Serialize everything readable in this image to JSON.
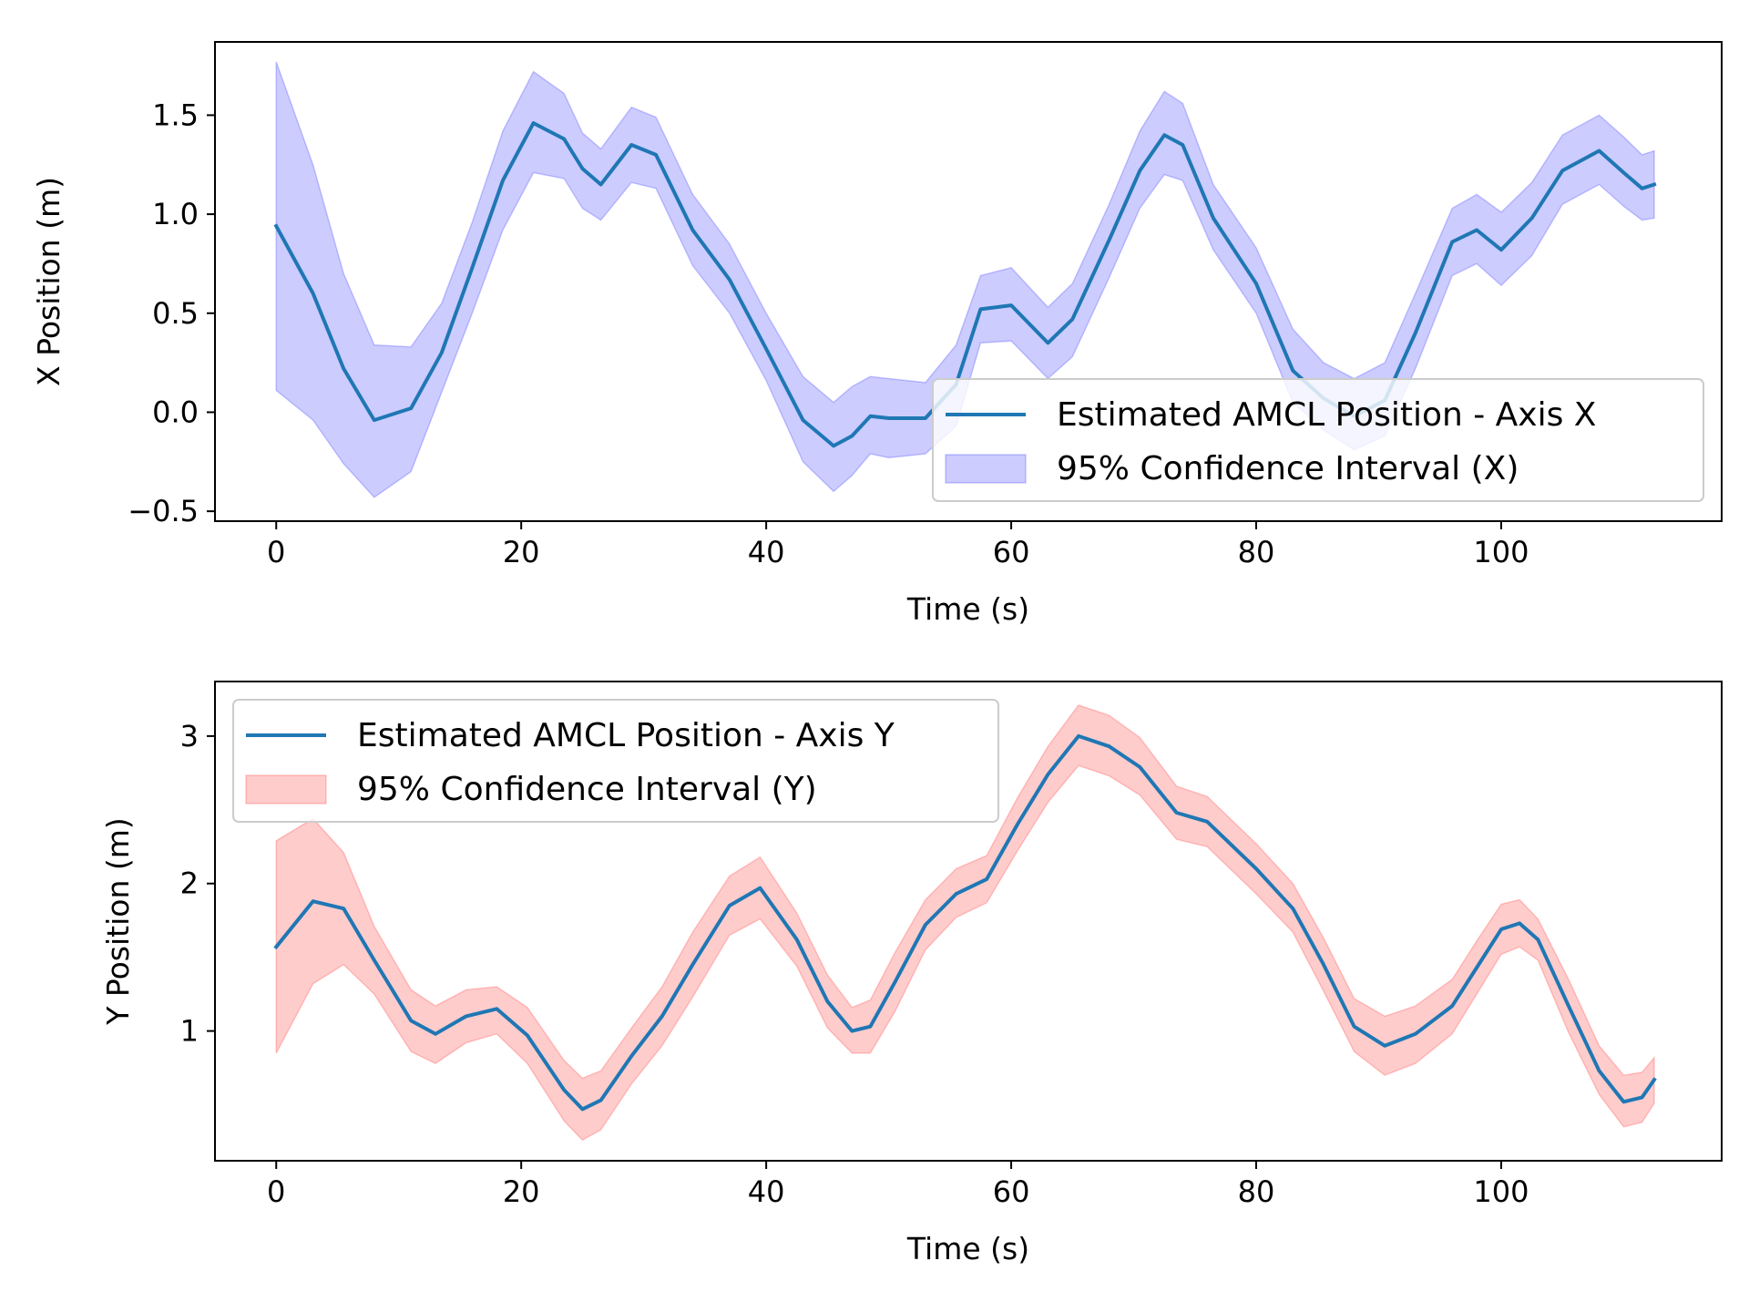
{
  "colors": {
    "line": "#1f77b4",
    "band_x": "#0000ff",
    "band_y": "#ff0000",
    "axes": "#000000",
    "legend_border": "#cccccc"
  },
  "chart_data": [
    {
      "type": "line",
      "xlabel": "Time (s)",
      "ylabel": "X Position (m)",
      "xlim": [
        -5,
        118
      ],
      "ylim": [
        -0.55,
        1.87
      ],
      "xticks": [
        0,
        20,
        40,
        60,
        80,
        100
      ],
      "yticks": [
        -0.5,
        0.0,
        0.5,
        1.0,
        1.5
      ],
      "ytick_labels": [
        "−0.5",
        "0.0",
        "0.5",
        "1.0",
        "1.5"
      ],
      "grid": false,
      "legend_position": "lower right",
      "x": [
        0,
        3,
        5.5,
        8,
        11,
        13.5,
        16,
        18.5,
        21,
        23.5,
        25,
        26.5,
        29,
        31,
        34,
        37,
        40,
        43,
        45.5,
        47,
        48.5,
        50,
        53,
        55.5,
        57.5,
        60,
        63,
        65,
        68,
        70.5,
        72.5,
        74,
        76.5,
        80,
        83,
        85.5,
        88,
        90.5,
        93,
        96,
        98,
        100,
        102.5,
        105,
        108,
        110,
        111.5,
        112.5
      ],
      "series": [
        {
          "name": "Estimated AMCL Position - Axis X",
          "role": "line",
          "values": [
            0.94,
            0.6,
            0.22,
            -0.04,
            0.02,
            0.3,
            0.73,
            1.17,
            1.46,
            1.38,
            1.23,
            1.15,
            1.35,
            1.3,
            0.92,
            0.67,
            0.32,
            -0.04,
            -0.17,
            -0.12,
            -0.02,
            -0.03,
            -0.03,
            0.14,
            0.52,
            0.54,
            0.35,
            0.47,
            0.87,
            1.22,
            1.4,
            1.35,
            0.98,
            0.65,
            0.21,
            0.07,
            -0.02,
            0.06,
            0.4,
            0.86,
            0.92,
            0.82,
            0.98,
            1.22,
            1.32,
            1.21,
            1.13,
            1.15
          ]
        },
        {
          "name": "95% Confidence Interval (X)",
          "role": "band",
          "lower": [
            0.11,
            -0.04,
            -0.26,
            -0.43,
            -0.3,
            0.1,
            0.5,
            0.92,
            1.21,
            1.18,
            1.03,
            0.97,
            1.16,
            1.13,
            0.74,
            0.5,
            0.16,
            -0.25,
            -0.4,
            -0.32,
            -0.21,
            -0.23,
            -0.21,
            -0.07,
            0.35,
            0.36,
            0.17,
            0.28,
            0.68,
            1.03,
            1.2,
            1.17,
            0.82,
            0.5,
            0.05,
            -0.09,
            -0.19,
            -0.12,
            0.22,
            0.69,
            0.75,
            0.64,
            0.79,
            1.05,
            1.15,
            1.04,
            0.97,
            0.98
          ],
          "upper": [
            1.77,
            1.25,
            0.7,
            0.34,
            0.33,
            0.55,
            0.96,
            1.42,
            1.72,
            1.61,
            1.41,
            1.33,
            1.54,
            1.49,
            1.1,
            0.85,
            0.5,
            0.18,
            0.05,
            0.13,
            0.18,
            0.17,
            0.15,
            0.34,
            0.69,
            0.73,
            0.53,
            0.65,
            1.05,
            1.42,
            1.62,
            1.56,
            1.15,
            0.83,
            0.42,
            0.25,
            0.17,
            0.25,
            0.6,
            1.03,
            1.1,
            1.01,
            1.16,
            1.4,
            1.5,
            1.39,
            1.3,
            1.32
          ]
        }
      ]
    },
    {
      "type": "line",
      "xlabel": "Time (s)",
      "ylabel": "Y Position (m)",
      "xlim": [
        -5,
        118
      ],
      "ylim": [
        0.12,
        3.37
      ],
      "xticks": [
        0,
        20,
        40,
        60,
        80,
        100
      ],
      "yticks": [
        1,
        2,
        3
      ],
      "ytick_labels": [
        "1",
        "2",
        "3"
      ],
      "grid": false,
      "legend_position": "upper left",
      "x": [
        0,
        3,
        5.5,
        8,
        11,
        13,
        15.5,
        18,
        20.5,
        23.5,
        25,
        26.5,
        29,
        31.5,
        34,
        37,
        39.5,
        42.5,
        45,
        47,
        48.5,
        50.5,
        53,
        55.5,
        58,
        60.5,
        63,
        65.5,
        68,
        70.5,
        73.5,
        76,
        80,
        83,
        85.5,
        88,
        90.5,
        93,
        96,
        98,
        100,
        101.5,
        103,
        105.5,
        108,
        110,
        111.5,
        112.5
      ],
      "series": [
        {
          "name": "Estimated AMCL Position - Axis Y",
          "role": "line",
          "values": [
            1.57,
            1.88,
            1.83,
            1.48,
            1.07,
            0.98,
            1.1,
            1.15,
            0.97,
            0.6,
            0.47,
            0.53,
            0.83,
            1.1,
            1.45,
            1.85,
            1.97,
            1.62,
            1.2,
            1.0,
            1.03,
            1.33,
            1.72,
            1.93,
            2.03,
            2.4,
            2.74,
            3.0,
            2.93,
            2.79,
            2.48,
            2.42,
            2.1,
            1.83,
            1.45,
            1.03,
            0.9,
            0.98,
            1.17,
            1.43,
            1.69,
            1.73,
            1.62,
            1.17,
            0.73,
            0.52,
            0.55,
            0.67
          ]
        },
        {
          "name": "95% Confidence Interval (Y)",
          "role": "band",
          "lower": [
            0.85,
            1.32,
            1.45,
            1.25,
            0.86,
            0.78,
            0.92,
            0.98,
            0.78,
            0.39,
            0.26,
            0.33,
            0.64,
            0.9,
            1.23,
            1.65,
            1.76,
            1.44,
            1.02,
            0.85,
            0.85,
            1.13,
            1.55,
            1.77,
            1.87,
            2.22,
            2.55,
            2.8,
            2.73,
            2.6,
            2.3,
            2.25,
            1.93,
            1.67,
            1.27,
            0.86,
            0.7,
            0.78,
            0.98,
            1.25,
            1.52,
            1.57,
            1.48,
            0.99,
            0.57,
            0.35,
            0.38,
            0.51
          ]
        },
        {
          "name": "",
          "role": "band-upper",
          "values": [
            2.29,
            2.44,
            2.21,
            1.71,
            1.28,
            1.17,
            1.28,
            1.3,
            1.16,
            0.8,
            0.68,
            0.73,
            1.02,
            1.3,
            1.67,
            2.05,
            2.18,
            1.8,
            1.38,
            1.16,
            1.21,
            1.53,
            1.89,
            2.1,
            2.19,
            2.58,
            2.93,
            3.21,
            3.14,
            2.99,
            2.66,
            2.59,
            2.27,
            2.0,
            1.63,
            1.22,
            1.1,
            1.17,
            1.35,
            1.61,
            1.86,
            1.89,
            1.76,
            1.35,
            0.9,
            0.7,
            0.72,
            0.82
          ]
        }
      ]
    }
  ]
}
